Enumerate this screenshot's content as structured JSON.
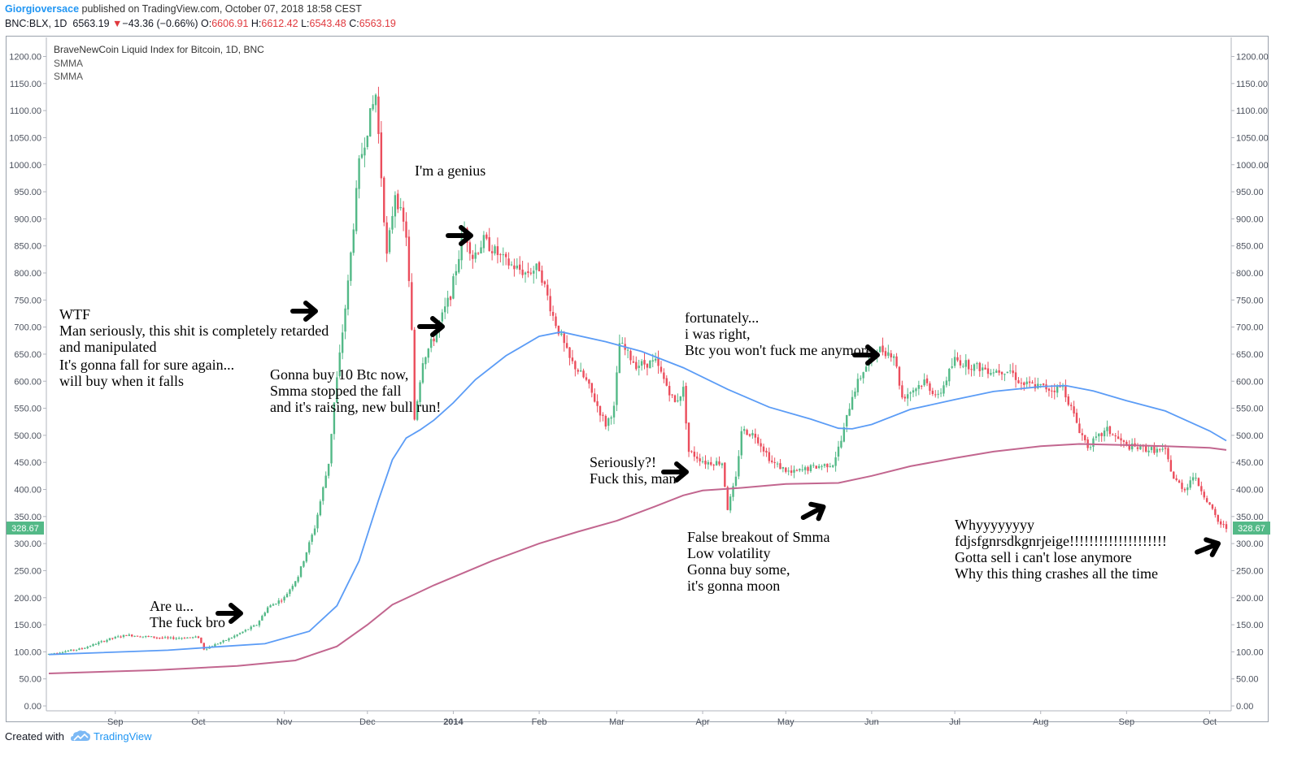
{
  "header": {
    "author": "Giorgioversace",
    "published": "published on TradingView.com, October 07, 2018 18:58 CEST",
    "ticker": "BNC:BLX, 1D",
    "last": "6563.19",
    "change_arrow": "▼",
    "change": "−43.36 (−0.66%)",
    "o_label": "O:",
    "o_value": "6606.91",
    "h_label": "H:",
    "h_value": "6612.42",
    "l_label": "L:",
    "l_value": "6543.48",
    "c_label": "C:",
    "c_value": "6563.19"
  },
  "legend": {
    "title": "BraveNewCoin Liquid Index for Bitcoin, 1D, BNC",
    "indicator1": "SMMA",
    "indicator2": "SMMA"
  },
  "price_badge": "328.67",
  "footer": {
    "created_with": "Created with",
    "brand": "TradingView",
    "logo_icon": "tradingview-cloud-icon"
  },
  "annotations": [
    {
      "lines": [
        "Are u...",
        "The fuck bro"
      ]
    },
    {
      "lines": [
        "WTF",
        "Man seriously, this shit is completely retarded",
        "and manipulated",
        "It's gonna fall for sure again...",
        "will buy when it falls"
      ]
    },
    {
      "lines": [
        "Gonna buy 10 Btc now,",
        "Smma stopped the fall",
        "and it's raising, new bull run!"
      ]
    },
    {
      "lines": [
        "I'm a genius"
      ]
    },
    {
      "lines": [
        "Seriously?!",
        "Fuck this, man"
      ]
    },
    {
      "lines": [
        "fortunately...",
        "i was right,",
        "Btc you won't fuck me anymore"
      ]
    },
    {
      "lines": [
        "False breakout of Smma",
        "Low volatility",
        "Gonna buy some,",
        "it's gonna moon"
      ]
    },
    {
      "lines": [
        "Whyyyyyyyy",
        "fdjsfgnrsdkgnrjeige!!!!!!!!!!!!!!!!!!!!",
        "Gotta sell i can't lose anymore",
        "Why this thing crashes all the time"
      ]
    }
  ],
  "colors": {
    "bull": "#53b987",
    "bear": "#eb4d5c",
    "smma_fast": "#5b9cf6",
    "smma_slow": "#c2668f",
    "badge": "#53b987",
    "axis_text": "#4c525e",
    "annotation_arrow": "#000000"
  },
  "chart_data": {
    "type": "candlestick",
    "title": "BraveNewCoin Liquid Index for Bitcoin, 1D, BNC",
    "y_ticks": [
      "0.00",
      "50.00",
      "100.00",
      "150.00",
      "200.00",
      "250.00",
      "300.00",
      "350.00",
      "400.00",
      "450.00",
      "500.00",
      "550.00",
      "600.00",
      "650.00",
      "700.00",
      "750.00",
      "800.00",
      "850.00",
      "900.00",
      "950.00",
      "1000.00",
      "1050.00",
      "1100.00",
      "1150.00",
      "1200.00"
    ],
    "x_ticks": [
      "Sep",
      "Oct",
      "Nov",
      "Dec",
      "2014",
      "Feb",
      "Mar",
      "Apr",
      "May",
      "Jun",
      "Jul",
      "Aug",
      "Sep",
      "Oct"
    ],
    "ylim": [
      0,
      1220
    ],
    "x_range": [
      "2013-08-08",
      "2014-10-07"
    ],
    "price_path": [
      [
        "2013-08-08",
        96
      ],
      [
        "2013-08-20",
        106
      ],
      [
        "2013-08-30",
        124
      ],
      [
        "2013-09-05",
        131
      ],
      [
        "2013-09-20",
        125
      ],
      [
        "2013-10-01",
        127
      ],
      [
        "2013-10-03",
        105
      ],
      [
        "2013-10-12",
        124
      ],
      [
        "2013-10-22",
        150
      ],
      [
        "2013-10-26",
        182
      ],
      [
        "2013-11-01",
        200
      ],
      [
        "2013-11-06",
        240
      ],
      [
        "2013-11-12",
        330
      ],
      [
        "2013-11-17",
        450
      ],
      [
        "2013-11-19",
        560
      ],
      [
        "2013-11-24",
        780
      ],
      [
        "2013-11-28",
        1000
      ],
      [
        "2013-12-02",
        1090
      ],
      [
        "2013-12-04",
        1130
      ],
      [
        "2013-12-08",
        830
      ],
      [
        "2013-12-11",
        950
      ],
      [
        "2013-12-15",
        870
      ],
      [
        "2013-12-17",
        690
      ],
      [
        "2013-12-18",
        530
      ],
      [
        "2013-12-21",
        640
      ],
      [
        "2013-12-25",
        680
      ],
      [
        "2013-12-31",
        760
      ],
      [
        "2014-01-05",
        880
      ],
      [
        "2014-01-08",
        830
      ],
      [
        "2014-01-12",
        860
      ],
      [
        "2014-01-20",
        820
      ],
      [
        "2014-01-27",
        800
      ],
      [
        "2014-02-01",
        810
      ],
      [
        "2014-02-06",
        720
      ],
      [
        "2014-02-12",
        640
      ],
      [
        "2014-02-18",
        600
      ],
      [
        "2014-02-25",
        520
      ],
      [
        "2014-02-28",
        550
      ],
      [
        "2014-03-02",
        670
      ],
      [
        "2014-03-08",
        630
      ],
      [
        "2014-03-15",
        635
      ],
      [
        "2014-03-22",
        560
      ],
      [
        "2014-03-25",
        585
      ],
      [
        "2014-03-27",
        470
      ],
      [
        "2014-04-02",
        450
      ],
      [
        "2014-04-08",
        450
      ],
      [
        "2014-04-10",
        365
      ],
      [
        "2014-04-13",
        420
      ],
      [
        "2014-04-15",
        510
      ],
      [
        "2014-04-20",
        500
      ],
      [
        "2014-04-26",
        450
      ],
      [
        "2014-05-03",
        430
      ],
      [
        "2014-05-10",
        440
      ],
      [
        "2014-05-18",
        448
      ],
      [
        "2014-05-21",
        490
      ],
      [
        "2014-05-25",
        575
      ],
      [
        "2014-05-29",
        620
      ],
      [
        "2014-06-03",
        660
      ],
      [
        "2014-06-09",
        650
      ],
      [
        "2014-06-12",
        570
      ],
      [
        "2014-06-20",
        600
      ],
      [
        "2014-06-25",
        570
      ],
      [
        "2014-07-01",
        640
      ],
      [
        "2014-07-06",
        630
      ],
      [
        "2014-07-14",
        620
      ],
      [
        "2014-07-21",
        620
      ],
      [
        "2014-07-25",
        595
      ],
      [
        "2014-08-01",
        590
      ],
      [
        "2014-08-05",
        585
      ],
      [
        "2014-08-09",
        590
      ],
      [
        "2014-08-15",
        510
      ],
      [
        "2014-08-18",
        480
      ],
      [
        "2014-08-25",
        510
      ],
      [
        "2014-09-01",
        480
      ],
      [
        "2014-09-08",
        475
      ],
      [
        "2014-09-15",
        470
      ],
      [
        "2014-09-18",
        420
      ],
      [
        "2014-09-22",
        400
      ],
      [
        "2014-09-25",
        425
      ],
      [
        "2014-09-28",
        400
      ],
      [
        "2014-10-04",
        340
      ],
      [
        "2014-10-07",
        328.67
      ]
    ],
    "smma_fast": [
      [
        "2013-08-08",
        95
      ],
      [
        "2013-09-20",
        103
      ],
      [
        "2013-10-10",
        110
      ],
      [
        "2013-10-25",
        115
      ],
      [
        "2013-11-10",
        138
      ],
      [
        "2013-11-20",
        185
      ],
      [
        "2013-11-28",
        268
      ],
      [
        "2013-12-05",
        380
      ],
      [
        "2013-12-10",
        455
      ],
      [
        "2013-12-15",
        495
      ],
      [
        "2013-12-20",
        510
      ],
      [
        "2013-12-25",
        528
      ],
      [
        "2014-01-01",
        560
      ],
      [
        "2014-01-09",
        603
      ],
      [
        "2014-01-20",
        647
      ],
      [
        "2014-02-01",
        683
      ],
      [
        "2014-02-09",
        691
      ],
      [
        "2014-02-25",
        673
      ],
      [
        "2014-03-10",
        655
      ],
      [
        "2014-03-25",
        625
      ],
      [
        "2014-04-10",
        585
      ],
      [
        "2014-04-25",
        552
      ],
      [
        "2014-05-10",
        530
      ],
      [
        "2014-05-20",
        513
      ],
      [
        "2014-05-25",
        512
      ],
      [
        "2014-06-01",
        520
      ],
      [
        "2014-06-15",
        548
      ],
      [
        "2014-07-01",
        566
      ],
      [
        "2014-07-15",
        581
      ],
      [
        "2014-08-01",
        590
      ],
      [
        "2014-08-10",
        592
      ],
      [
        "2014-08-20",
        582
      ],
      [
        "2014-09-01",
        564
      ],
      [
        "2014-09-15",
        545
      ],
      [
        "2014-10-01",
        508
      ],
      [
        "2014-10-07",
        490
      ]
    ],
    "smma_slow": [
      [
        "2013-08-08",
        60
      ],
      [
        "2013-09-15",
        66
      ],
      [
        "2013-10-15",
        74
      ],
      [
        "2013-11-05",
        84
      ],
      [
        "2013-11-20",
        110
      ],
      [
        "2013-12-01",
        150
      ],
      [
        "2013-12-10",
        187
      ],
      [
        "2013-12-25",
        223
      ],
      [
        "2014-01-15",
        268
      ],
      [
        "2014-02-01",
        300
      ],
      [
        "2014-02-15",
        322
      ],
      [
        "2014-03-01",
        342
      ],
      [
        "2014-03-15",
        369
      ],
      [
        "2014-03-25",
        389
      ],
      [
        "2014-04-01",
        398
      ],
      [
        "2014-04-15",
        403
      ],
      [
        "2014-05-01",
        410
      ],
      [
        "2014-05-20",
        412
      ],
      [
        "2014-06-01",
        425
      ],
      [
        "2014-06-15",
        443
      ],
      [
        "2014-07-01",
        458
      ],
      [
        "2014-07-15",
        470
      ],
      [
        "2014-08-01",
        480
      ],
      [
        "2014-08-15",
        484
      ],
      [
        "2014-09-01",
        482
      ],
      [
        "2014-09-15",
        480
      ],
      [
        "2014-10-01",
        477
      ],
      [
        "2014-10-07",
        473
      ]
    ],
    "series": [
      {
        "name": "SMMA",
        "role": "fast",
        "color": "#5b9cf6"
      },
      {
        "name": "SMMA",
        "role": "slow",
        "color": "#c2668f"
      }
    ],
    "grid": false,
    "last_value": 328.67
  }
}
